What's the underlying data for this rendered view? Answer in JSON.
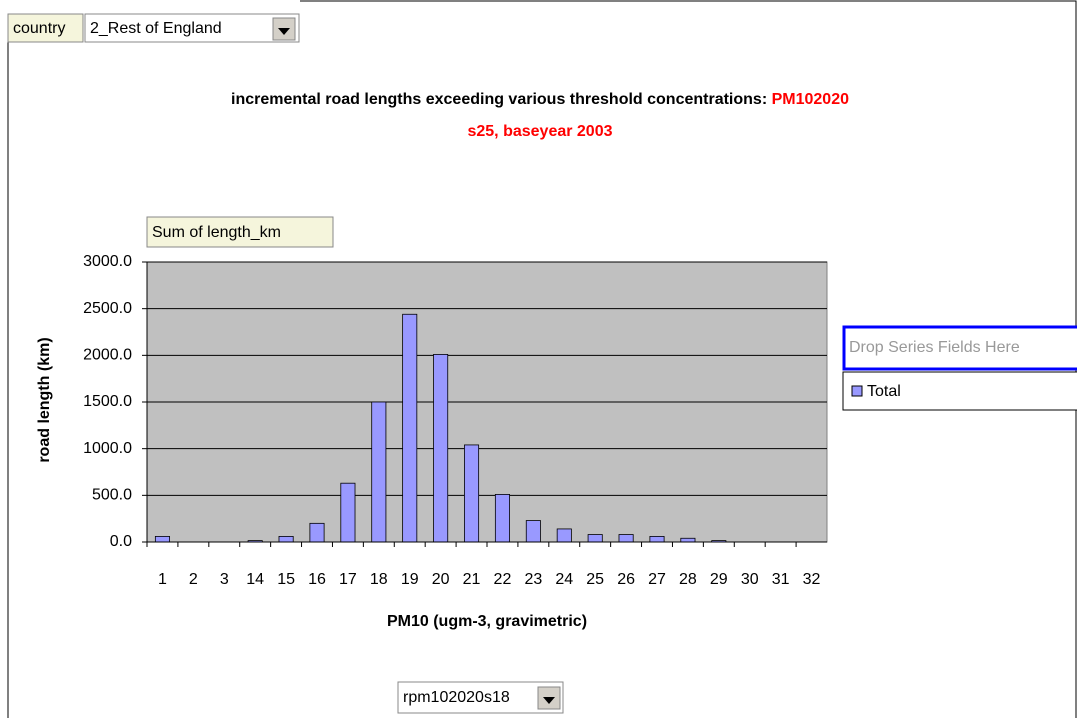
{
  "chart_data": {
    "type": "bar",
    "page_field_name": "country",
    "page_field_value": "2_Rest of England",
    "title_part1": "incremental road lengths exceeding various threshold concentrations: ",
    "title_part2": "PM102020",
    "subtitle": "s25, baseyear 2003",
    "data_field": "Sum of length_km",
    "y_label": "road length (km)",
    "x_label": "PM10 (ugm-3, gravimetric)",
    "series_drop_zone": "Drop Series Fields Here",
    "category_field_value": "rpm102020s18",
    "categories": [
      "1",
      "2",
      "3",
      "14",
      "15",
      "16",
      "17",
      "18",
      "19",
      "20",
      "21",
      "22",
      "23",
      "24",
      "25",
      "26",
      "27",
      "28",
      "29",
      "30",
      "31",
      "32"
    ],
    "series": [
      {
        "name": "Total",
        "color": "#9999ff",
        "values": [
          60,
          0,
          0,
          15,
          60,
          200,
          630,
          1500,
          2440,
          2010,
          1040,
          510,
          230,
          140,
          80,
          80,
          60,
          40,
          15,
          0,
          0,
          0
        ]
      }
    ],
    "ylim": [
      0,
      3000
    ],
    "yticks": [
      {
        "value": 0,
        "label": "0.0"
      },
      {
        "value": 500,
        "label": "500.0"
      },
      {
        "value": 1000,
        "label": "1000.0"
      },
      {
        "value": 1500,
        "label": "1500.0"
      },
      {
        "value": 2000,
        "label": "2000.0"
      },
      {
        "value": 2500,
        "label": "2500.0"
      },
      {
        "value": 3000,
        "label": "3000.0"
      }
    ],
    "grid": true
  }
}
